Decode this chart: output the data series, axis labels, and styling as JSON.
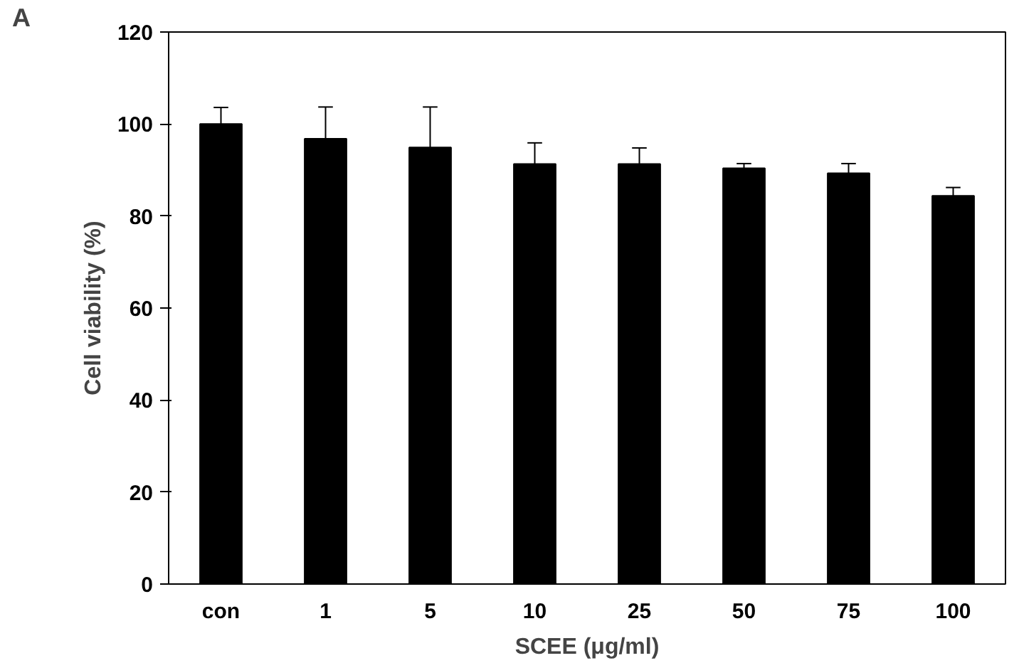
{
  "chart_data": {
    "type": "bar",
    "categories": [
      "con",
      "1",
      "5",
      "10",
      "25",
      "50",
      "75",
      "100"
    ],
    "values": [
      100,
      96.8,
      94.9,
      91.3,
      91.3,
      90.4,
      89.3,
      84.4
    ],
    "errors": [
      [
        100,
        103.6
      ],
      [
        96.8,
        103.7
      ],
      [
        94.9,
        103.7
      ],
      [
        91.3,
        95.9
      ],
      [
        91.3,
        94.8
      ],
      [
        90.4,
        91.4
      ],
      [
        89.3,
        91.4
      ],
      [
        84.4,
        86.2
      ]
    ],
    "color": "#000000",
    "xlabel": "SCEE (μg/ml)",
    "ylabel": "Cell viability (%)",
    "ylim": [
      0,
      120
    ],
    "yticks": [
      0,
      20,
      40,
      60,
      80,
      100,
      120
    ],
    "grid": false,
    "annotations": [
      "A"
    ]
  }
}
